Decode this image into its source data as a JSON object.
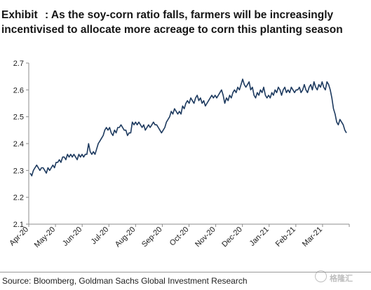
{
  "title": {
    "label": "Exhibit",
    "line1": ": As the soy-corn ratio falls, farmers will be increasingly",
    "line2": "incentivised to allocate more acreage to corn this planting season"
  },
  "source": "Source: Bloomberg, Goldman Sachs Global Investment Research",
  "watermark": {
    "text": "格隆汇",
    "icon": "watermark-logo-icon"
  },
  "colors": {
    "line": "#1d3a5f",
    "axis": "#8c8c8c"
  },
  "chart_data": {
    "type": "line",
    "title": "",
    "xlabel": "",
    "ylabel": "",
    "ylim": [
      2.1,
      2.7
    ],
    "yticks": [
      2.1,
      2.2,
      2.3,
      2.4,
      2.5,
      2.6,
      2.7
    ],
    "ytick_labels": [
      "2.1",
      "2.2",
      "2.3",
      "2.4",
      "2.5",
      "2.6",
      "2.7"
    ],
    "xticks": [
      "Apr-20",
      "May-20",
      "Jun-20",
      "Jul-20",
      "Aug-20",
      "Sep-20",
      "Oct-20",
      "Nov-20",
      "Dec-20",
      "Jan-21",
      "Feb-21",
      "Mar-21"
    ],
    "grid": false,
    "legend": "none",
    "series": [
      {
        "name": "",
        "x_start": "2020-04-01",
        "x_end": "2021-03-31",
        "values": [
          2.29,
          2.28,
          2.3,
          2.31,
          2.32,
          2.31,
          2.3,
          2.31,
          2.31,
          2.3,
          2.29,
          2.31,
          2.3,
          2.31,
          2.32,
          2.31,
          2.33,
          2.33,
          2.34,
          2.33,
          2.35,
          2.35,
          2.34,
          2.36,
          2.35,
          2.36,
          2.35,
          2.36,
          2.35,
          2.34,
          2.36,
          2.35,
          2.36,
          2.35,
          2.36,
          2.36,
          2.4,
          2.37,
          2.36,
          2.37,
          2.36,
          2.38,
          2.4,
          2.41,
          2.42,
          2.43,
          2.45,
          2.46,
          2.45,
          2.46,
          2.44,
          2.43,
          2.45,
          2.44,
          2.46,
          2.46,
          2.47,
          2.46,
          2.45,
          2.45,
          2.43,
          2.44,
          2.44,
          2.48,
          2.47,
          2.48,
          2.47,
          2.48,
          2.47,
          2.46,
          2.47,
          2.45,
          2.46,
          2.47,
          2.46,
          2.47,
          2.48,
          2.47,
          2.47,
          2.46,
          2.45,
          2.44,
          2.45,
          2.46,
          2.48,
          2.49,
          2.5,
          2.52,
          2.51,
          2.53,
          2.52,
          2.51,
          2.52,
          2.51,
          2.54,
          2.53,
          2.55,
          2.56,
          2.55,
          2.57,
          2.56,
          2.55,
          2.57,
          2.58,
          2.56,
          2.57,
          2.55,
          2.56,
          2.54,
          2.55,
          2.56,
          2.57,
          2.58,
          2.57,
          2.58,
          2.57,
          2.58,
          2.59,
          2.6,
          2.58,
          2.55,
          2.57,
          2.56,
          2.58,
          2.57,
          2.59,
          2.6,
          2.59,
          2.61,
          2.6,
          2.62,
          2.64,
          2.62,
          2.61,
          2.62,
          2.63,
          2.6,
          2.61,
          2.58,
          2.57,
          2.59,
          2.58,
          2.6,
          2.59,
          2.61,
          2.58,
          2.57,
          2.58,
          2.57,
          2.59,
          2.58,
          2.6,
          2.59,
          2.61,
          2.6,
          2.58,
          2.6,
          2.61,
          2.59,
          2.6,
          2.59,
          2.61,
          2.6,
          2.59,
          2.6,
          2.6,
          2.61,
          2.59,
          2.6,
          2.62,
          2.6,
          2.59,
          2.61,
          2.62,
          2.6,
          2.63,
          2.61,
          2.6,
          2.62,
          2.61,
          2.63,
          2.61,
          2.6,
          2.63,
          2.62,
          2.6,
          2.57,
          2.53,
          2.51,
          2.48,
          2.47,
          2.49,
          2.48,
          2.47,
          2.45,
          2.44
        ]
      }
    ]
  }
}
